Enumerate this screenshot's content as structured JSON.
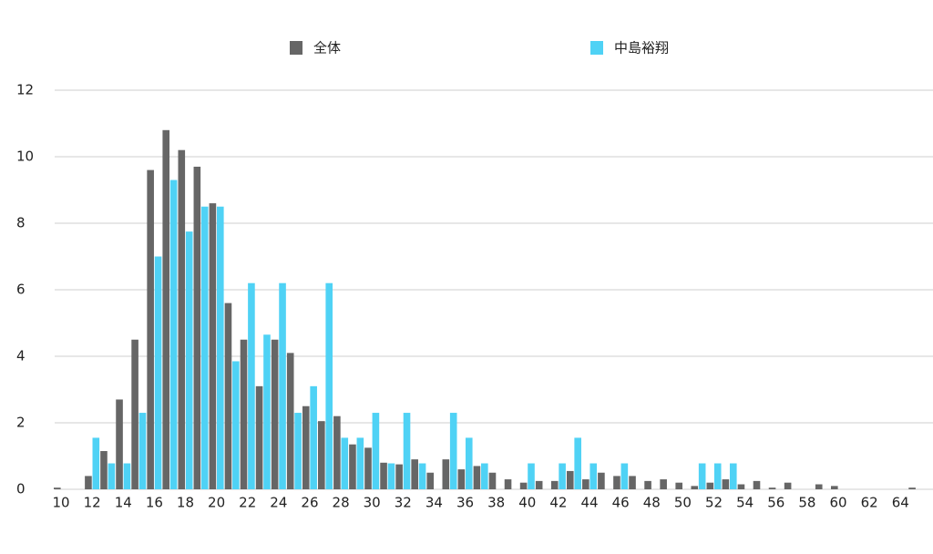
{
  "chart_data": {
    "type": "bar",
    "categories": [
      "10",
      null,
      "12",
      null,
      "14",
      null,
      "16",
      null,
      "18",
      null,
      "20",
      null,
      "22",
      null,
      "24",
      null,
      "26",
      null,
      "28",
      null,
      "30",
      null,
      "32",
      null,
      "34",
      null,
      "36",
      null,
      "38",
      null,
      "40",
      null,
      "42",
      null,
      "44",
      null,
      "46",
      null,
      "48",
      null,
      "50",
      null,
      "52",
      null,
      "54",
      null,
      "56",
      null,
      "58",
      null,
      "60",
      null,
      "62",
      null,
      "64",
      null
    ],
    "series": [
      {
        "name": "全体",
        "color": "#666666",
        "values": [
          0.05,
          0,
          0.4,
          1.15,
          2.7,
          4.5,
          9.6,
          10.8,
          10.2,
          9.7,
          8.6,
          5.6,
          4.5,
          3.1,
          4.5,
          4.1,
          2.5,
          2.05,
          2.2,
          1.35,
          1.25,
          0.8,
          0.75,
          0.9,
          0.5,
          0.9,
          0.6,
          0.7,
          0.5,
          0.3,
          0.2,
          0.25,
          0.25,
          0.55,
          0.3,
          0.5,
          0.4,
          0.4,
          0.25,
          0.3,
          0.2,
          0.1,
          0.2,
          0.3,
          0.15,
          0.25,
          0.05,
          0.2,
          0,
          0.15,
          0.1,
          0,
          0,
          0,
          0,
          0.05
        ]
      },
      {
        "name": "中島裕翔",
        "color": "#4fd2f5",
        "values": [
          0,
          0,
          1.55,
          0.78,
          0.78,
          2.3,
          7.0,
          9.3,
          7.75,
          8.5,
          8.5,
          3.85,
          6.2,
          4.65,
          6.2,
          2.3,
          3.1,
          6.2,
          1.55,
          1.55,
          2.3,
          0.78,
          2.3,
          0.78,
          0,
          2.3,
          1.55,
          0.78,
          0,
          0,
          0.78,
          0,
          0.78,
          1.55,
          0.78,
          0,
          0.78,
          0,
          0,
          0,
          0,
          0.78,
          0.78,
          0.78,
          0,
          0,
          0,
          0,
          0,
          0,
          0,
          0,
          0,
          0,
          0,
          0
        ]
      }
    ],
    "ylim": [
      0,
      12
    ],
    "yticks": [
      0,
      2,
      4,
      6,
      8,
      10,
      12
    ],
    "grid": true,
    "legend": "top"
  }
}
